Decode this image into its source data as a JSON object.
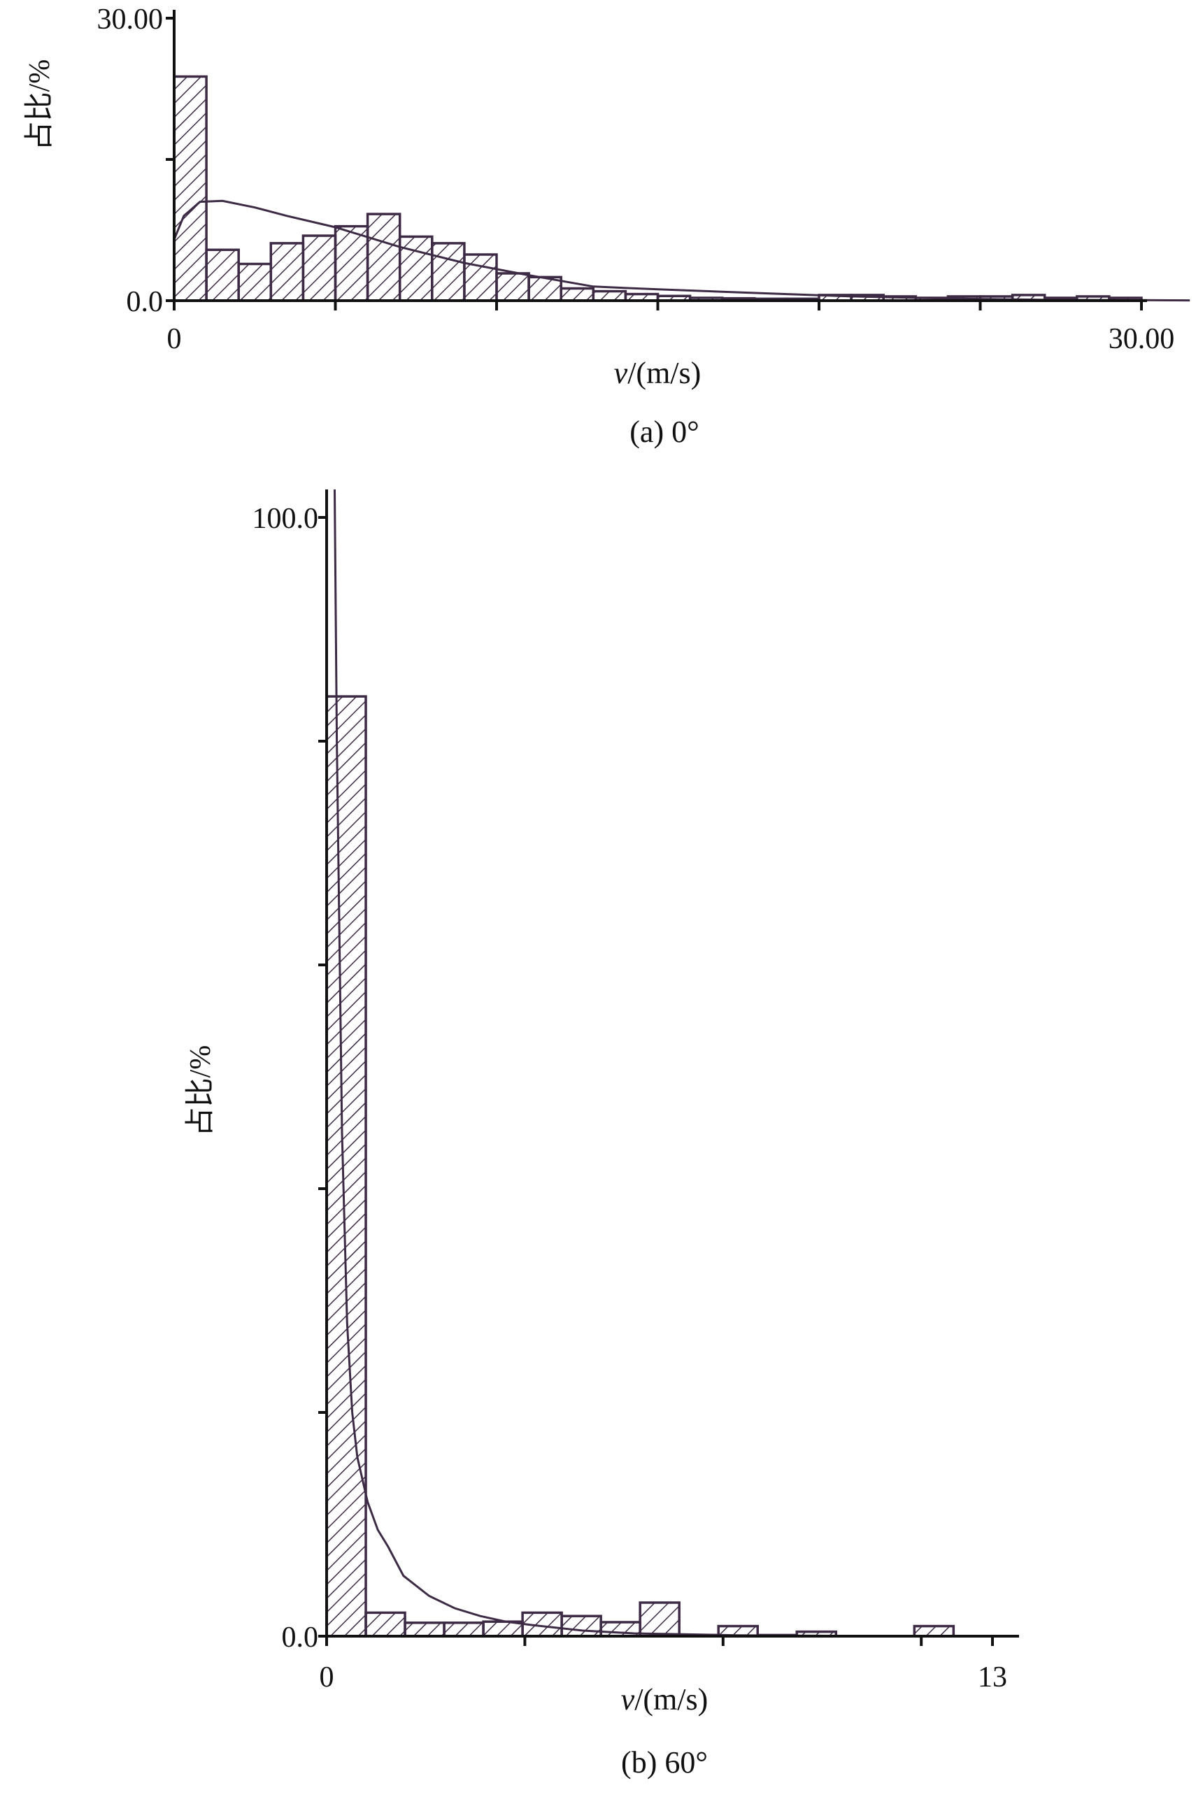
{
  "chart_data": [
    {
      "type": "bar",
      "caption": "(a) 0°",
      "xlabel_var": "v",
      "xlabel_unit": "/(m/s)",
      "ylabel": "占比/%",
      "xlim": [
        0,
        30
      ],
      "ylim": [
        0,
        30
      ],
      "x_tick_labels": {
        "0": "0",
        "30": "30.00"
      },
      "x_ticks": [
        0,
        5,
        10,
        15,
        20,
        25,
        30
      ],
      "y_tick_labels": {
        "0": "0.0",
        "30": "30.00"
      },
      "y_ticks": [
        0,
        15,
        30
      ],
      "bin_width": 1,
      "bin_start": 0,
      "values": [
        23.8,
        5.4,
        3.9,
        6.1,
        6.9,
        7.9,
        9.2,
        6.8,
        6.1,
        4.9,
        2.9,
        2.5,
        1.3,
        1.0,
        0.7,
        0.5,
        0.3,
        0.25,
        0.2,
        0.2,
        0.6,
        0.6,
        0.45,
        0.3,
        0.45,
        0.45,
        0.6,
        0.3,
        0.45,
        0.3
      ],
      "fit_curve": [
        [
          0,
          6.5
        ],
        [
          0.3,
          9
        ],
        [
          0.8,
          10.5
        ],
        [
          1.5,
          10.6
        ],
        [
          2.5,
          9.9
        ],
        [
          3.5,
          9
        ],
        [
          5,
          7.8
        ],
        [
          7,
          5.7
        ],
        [
          9,
          4.0
        ],
        [
          11,
          2.7
        ],
        [
          13,
          1.5
        ],
        [
          15,
          1.2
        ],
        [
          17,
          0.95
        ],
        [
          19,
          0.7
        ],
        [
          21,
          0.45
        ],
        [
          23,
          0.3
        ],
        [
          25,
          0.18
        ],
        [
          27,
          0.1
        ],
        [
          30,
          0.05
        ],
        [
          31.5,
          0.03
        ]
      ],
      "colors": {
        "bars": "#3d2b45",
        "axis": "#111111"
      },
      "grid": false
    },
    {
      "type": "bar",
      "caption": "(b) 60°",
      "xlabel_var": "v",
      "xlabel_unit": "/(m/s)",
      "ylabel": "占比/%",
      "xlim": [
        0,
        13
      ],
      "ylim": [
        0,
        100
      ],
      "x_tick_labels": {
        "0": "0",
        "13": "13"
      },
      "x_ticks": [
        0,
        3.87,
        7.74,
        11.61,
        13
      ],
      "y_tick_labels": {
        "0": "0.0",
        "100": "100.0"
      },
      "y_ticks": [
        0,
        20,
        40,
        60,
        80,
        100
      ],
      "bin_width": 0.765,
      "bin_start": 0,
      "values": [
        84,
        2.1,
        1.2,
        1.2,
        1.3,
        2.1,
        1.8,
        1.25,
        3.0,
        0.1,
        0.9,
        0.1,
        0.4,
        0,
        0,
        0.9,
        0
      ],
      "fit_curve": [
        [
          0.15,
          106
        ],
        [
          0.2,
          80
        ],
        [
          0.3,
          45
        ],
        [
          0.4,
          28
        ],
        [
          0.5,
          20
        ],
        [
          0.6,
          16
        ],
        [
          0.8,
          12
        ],
        [
          1.0,
          9.5
        ],
        [
          1.2,
          8
        ],
        [
          1.5,
          5.4
        ],
        [
          2.0,
          3.6
        ],
        [
          2.5,
          2.5
        ],
        [
          3,
          1.8
        ],
        [
          3.5,
          1.3
        ],
        [
          4,
          1.0
        ],
        [
          5,
          0.5
        ],
        [
          6,
          0.25
        ],
        [
          8,
          0.08
        ],
        [
          10,
          0.03
        ],
        [
          13,
          0.01
        ]
      ],
      "colors": {
        "bars": "#3d2b45",
        "axis": "#111111"
      },
      "grid": false
    }
  ]
}
